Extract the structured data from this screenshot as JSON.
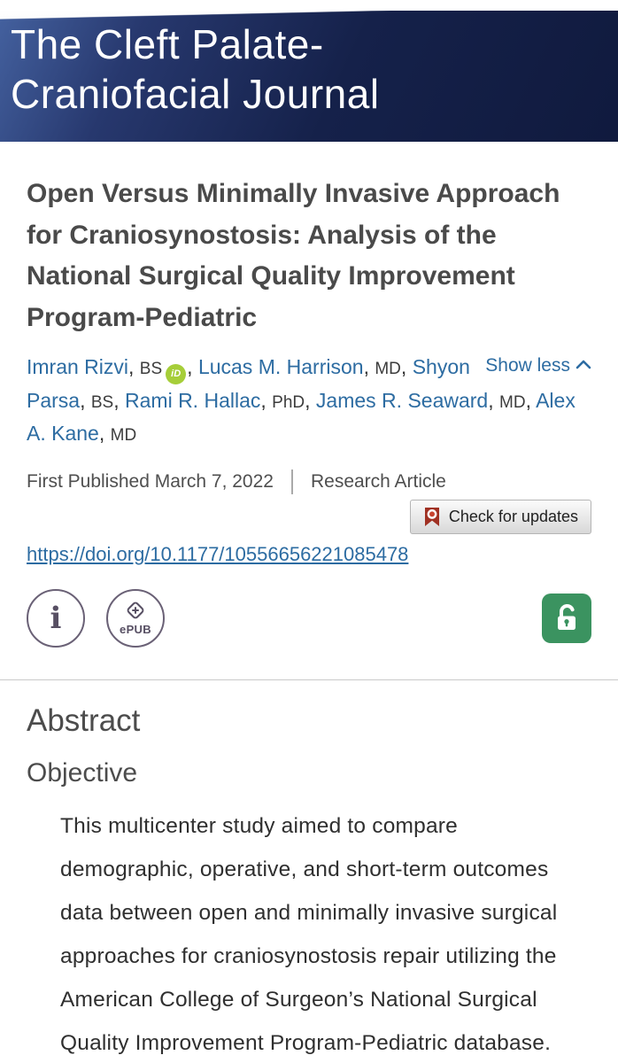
{
  "banner": {
    "title_line1": "The Cleft Palate-",
    "title_line2": "Craniofacial Journal"
  },
  "article": {
    "title": "Open Versus Minimally Invasive Approach for Craniosynostosis: Analysis of the National Surgical Quality Improvement Program-Pediatric",
    "authors": [
      {
        "name": "Imran Rizvi",
        "degree": "BS",
        "orcid": true
      },
      {
        "name": "Lucas M. Harrison",
        "degree": "MD"
      },
      {
        "name": "Shyon Parsa",
        "degree": "BS"
      },
      {
        "name": "Rami R. Hallac",
        "degree": "PhD"
      },
      {
        "name": "James R. Seaward",
        "degree": "MD"
      },
      {
        "name": "Alex A. Kane",
        "degree": "MD"
      }
    ],
    "author_separator": ", ",
    "show_less_label": "Show less",
    "first_published": "First Published March 7, 2022",
    "article_type": "Research Article",
    "check_updates_label": "Check for updates",
    "doi": "https://doi.org/10.1177/10556656221085478"
  },
  "icons": {
    "orcid_label": "iD",
    "info_label": "i",
    "epub_label": "ePUB",
    "crossmark_icon": "crossmark-ribbon",
    "open_access_icon": "open-padlock",
    "show_less_icon": "chevron-up"
  },
  "abstract": {
    "heading": "Abstract",
    "subheading": "Objective",
    "paragraph": "This multicenter study aimed to compare demographic, operative, and short-term outcomes data between open and minimally invasive surgical approaches for craniosynostosis repair utilizing the American College of Surgeon’s National Surgical Quality Improvement Program-Pediatric database."
  },
  "colors": {
    "banner_navy": "#13203f",
    "link_blue": "#2d6ca2",
    "orcid_green": "#a6ce39",
    "open_access_green": "#3b9360",
    "crossmark_red": "#a03123",
    "heading_gray": "#4c4c4c"
  }
}
